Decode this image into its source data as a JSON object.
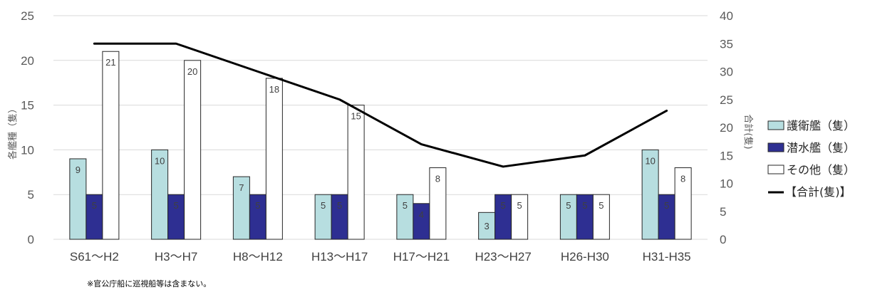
{
  "chart_data": {
    "type": "bar",
    "categories": [
      "S61～H2",
      "H3～H7",
      "H8～H12",
      "H13～H17",
      "H17～H21",
      "H23～H27",
      "H26-H30",
      "H31-H35"
    ],
    "series": [
      {
        "name": "護衛艦（隻）",
        "values": [
          9,
          10,
          7,
          5,
          5,
          3,
          5,
          10
        ],
        "color": "#b7dee0"
      },
      {
        "name": "潜水艦（隻）",
        "values": [
          5,
          5,
          5,
          5,
          4,
          5,
          5,
          5
        ],
        "color": "#2e2f92"
      },
      {
        "name": "その他（隻）",
        "values": [
          21,
          20,
          18,
          15,
          8,
          5,
          5,
          8
        ],
        "color": "#ffffff"
      }
    ],
    "line_series": {
      "name": "【合計(隻)】",
      "values": [
        35,
        35,
        30,
        25,
        17,
        13,
        15,
        23
      ],
      "color": "#000000",
      "axis": "right"
    },
    "ylabel": "各艦種（隻）",
    "y2label": "合計(隻)",
    "ylim": [
      0,
      25
    ],
    "y_ticks": [
      0,
      5,
      10,
      15,
      20,
      25
    ],
    "y2lim": [
      0,
      40
    ],
    "y2_ticks": [
      0,
      5,
      10,
      15,
      20,
      25,
      30,
      35,
      40
    ],
    "grid": true,
    "legend_position": "right"
  },
  "footnote": "※官公庁船に巡視船等は含まない。"
}
